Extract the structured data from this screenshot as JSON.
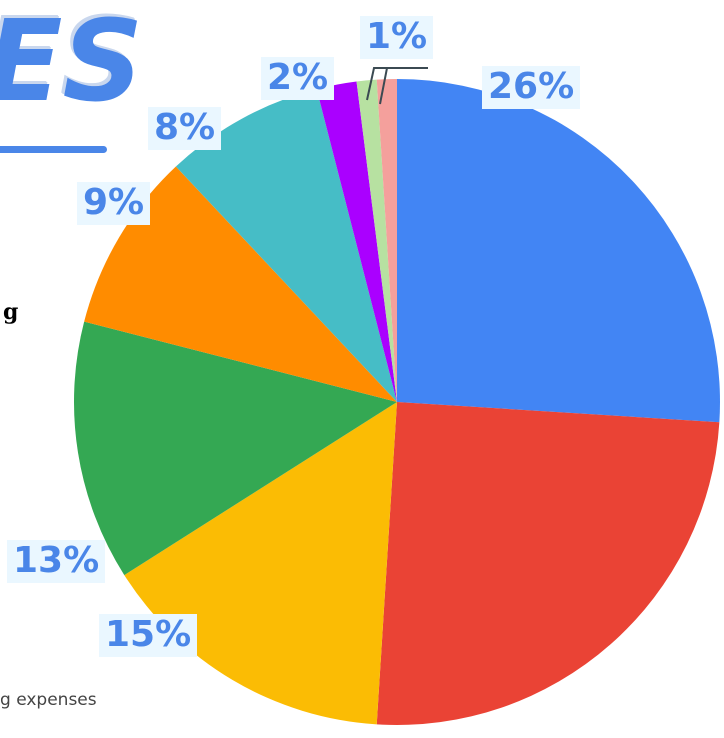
{
  "title_fragment": "ES",
  "side_fragment": "g",
  "footnote": "g expenses",
  "chart_data": {
    "type": "pie",
    "slices": [
      {
        "value": 26,
        "label": "26%",
        "color": "#4285f4"
      },
      {
        "value": 25,
        "label": "",
        "color": "#ea4335"
      },
      {
        "value": 15,
        "label": "15%",
        "color": "#fbbc04"
      },
      {
        "value": 13,
        "label": "13%",
        "color": "#34a853"
      },
      {
        "value": 9,
        "label": "9%",
        "color": "#ff8c00"
      },
      {
        "value": 8,
        "label": "8%",
        "color": "#46bdc6"
      },
      {
        "value": 2,
        "label": "2%",
        "color": "#aa00ff"
      },
      {
        "value": 1,
        "label": "1%",
        "color": "#b7e1a1"
      },
      {
        "value": 1,
        "label": "",
        "color": "#f4a09c"
      }
    ]
  }
}
